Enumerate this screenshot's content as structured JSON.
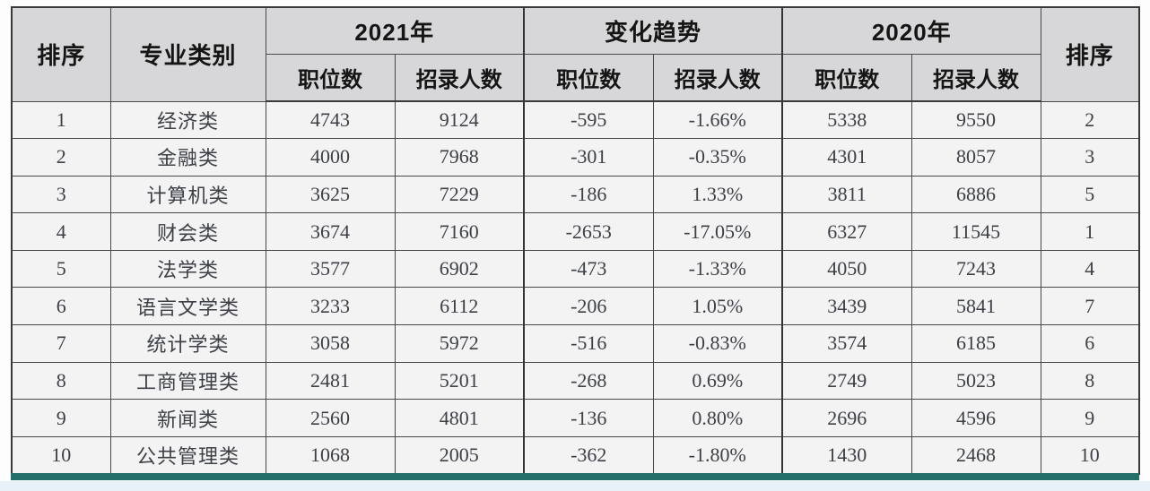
{
  "table": {
    "header": {
      "rank_left": "排序",
      "category": "专业类别",
      "groups": [
        {
          "label": "2021年"
        },
        {
          "label": "变化趋势"
        },
        {
          "label": "2020年"
        }
      ],
      "sub_positions": "职位数",
      "sub_recruits": "招录人数",
      "rank_right": "排序"
    },
    "rows": [
      {
        "rank_2021": "1",
        "category": "经济类",
        "pos_2021": "4743",
        "rec_2021": "9124",
        "pos_change": "-595",
        "rec_change_pct": "-1.66%",
        "pos_2020": "5338",
        "rec_2020": "9550",
        "rank_2020": "2"
      },
      {
        "rank_2021": "2",
        "category": "金融类",
        "pos_2021": "4000",
        "rec_2021": "7968",
        "pos_change": "-301",
        "rec_change_pct": "-0.35%",
        "pos_2020": "4301",
        "rec_2020": "8057",
        "rank_2020": "3"
      },
      {
        "rank_2021": "3",
        "category": "计算机类",
        "pos_2021": "3625",
        "rec_2021": "7229",
        "pos_change": "-186",
        "rec_change_pct": "1.33%",
        "pos_2020": "3811",
        "rec_2020": "6886",
        "rank_2020": "5"
      },
      {
        "rank_2021": "4",
        "category": "财会类",
        "pos_2021": "3674",
        "rec_2021": "7160",
        "pos_change": "-2653",
        "rec_change_pct": "-17.05%",
        "pos_2020": "6327",
        "rec_2020": "11545",
        "rank_2020": "1"
      },
      {
        "rank_2021": "5",
        "category": "法学类",
        "pos_2021": "3577",
        "rec_2021": "6902",
        "pos_change": "-473",
        "rec_change_pct": "-1.33%",
        "pos_2020": "4050",
        "rec_2020": "7243",
        "rank_2020": "4"
      },
      {
        "rank_2021": "6",
        "category": "语言文学类",
        "pos_2021": "3233",
        "rec_2021": "6112",
        "pos_change": "-206",
        "rec_change_pct": "1.05%",
        "pos_2020": "3439",
        "rec_2020": "5841",
        "rank_2020": "7"
      },
      {
        "rank_2021": "7",
        "category": "统计学类",
        "pos_2021": "3058",
        "rec_2021": "5972",
        "pos_change": "-516",
        "rec_change_pct": "-0.83%",
        "pos_2020": "3574",
        "rec_2020": "6185",
        "rank_2020": "6"
      },
      {
        "rank_2021": "8",
        "category": "工商管理类",
        "pos_2021": "2481",
        "rec_2021": "5201",
        "pos_change": "-268",
        "rec_change_pct": "0.69%",
        "pos_2020": "2749",
        "rec_2020": "5023",
        "rank_2020": "8"
      },
      {
        "rank_2021": "9",
        "category": "新闻类",
        "pos_2021": "2560",
        "rec_2021": "4801",
        "pos_change": "-136",
        "rec_change_pct": "0.80%",
        "pos_2020": "2696",
        "rec_2020": "4596",
        "rank_2020": "9"
      },
      {
        "rank_2021": "10",
        "category": "公共管理类",
        "pos_2021": "1068",
        "rec_2021": "2005",
        "pos_change": "-362",
        "rec_change_pct": "-1.80%",
        "pos_2020": "1430",
        "rec_2020": "2468",
        "rank_2020": "10"
      }
    ]
  },
  "colors": {
    "header_bg": "#d7d7d9",
    "body_bg": "#f3f3f4",
    "border": "#47484a",
    "accent_teal": "#216f68",
    "body_text": "#3d4046"
  }
}
